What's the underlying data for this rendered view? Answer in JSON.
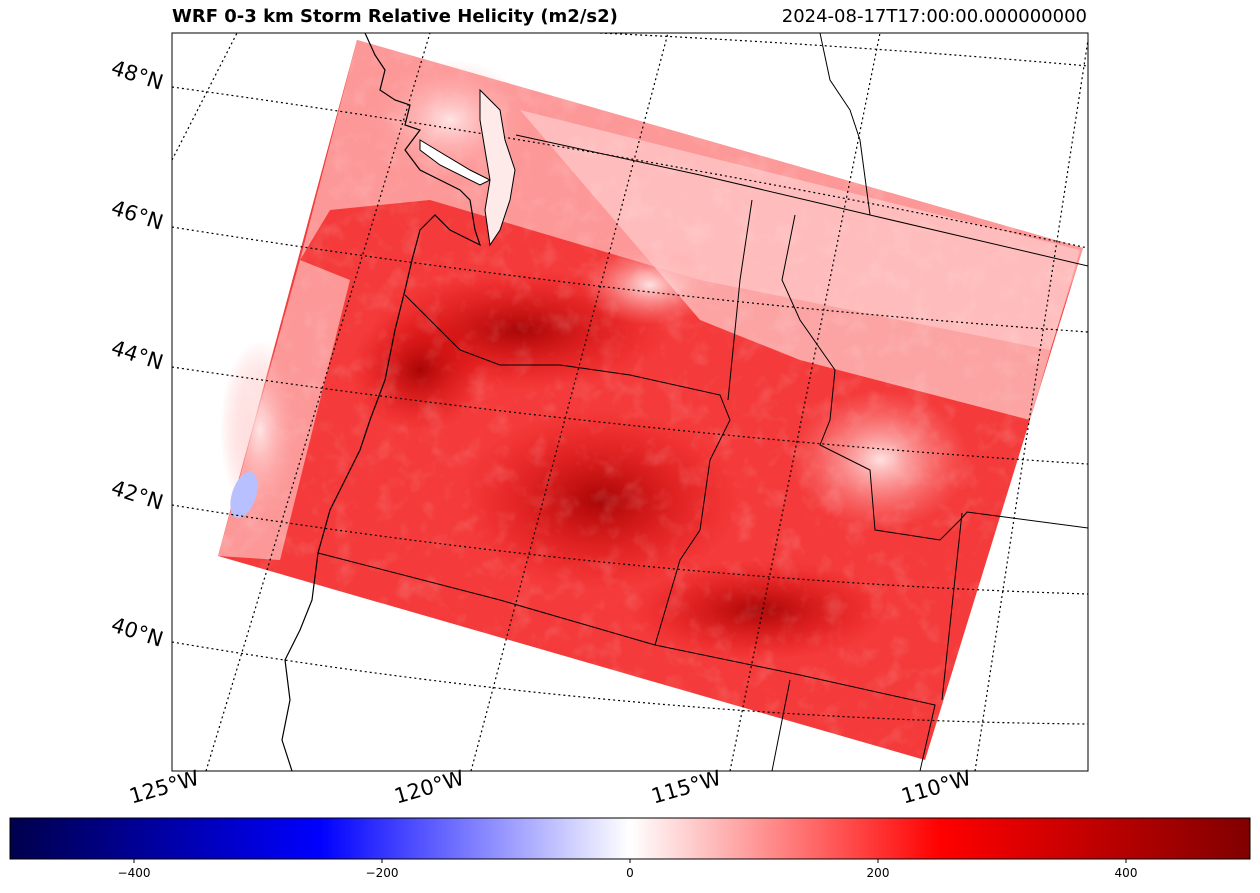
{
  "title": "WRF 0-3 km Storm Relative Helicity (m2/s2)",
  "timestamp": "2024-08-17T17:00:00.000000000",
  "lat_labels": [
    "48°N",
    "46°N",
    "44°N",
    "42°N",
    "40°N"
  ],
  "lon_labels": [
    "125°W",
    "120°W",
    "115°W",
    "110°W"
  ],
  "colorbar": {
    "colormap": "seismic",
    "range": [
      -500,
      500
    ],
    "ticks": [
      "−400",
      "−200",
      "0",
      "200",
      "400"
    ],
    "colors": [
      "#00004c",
      "#0000ff",
      "#ffffff",
      "#ff0000",
      "#800000"
    ]
  }
}
